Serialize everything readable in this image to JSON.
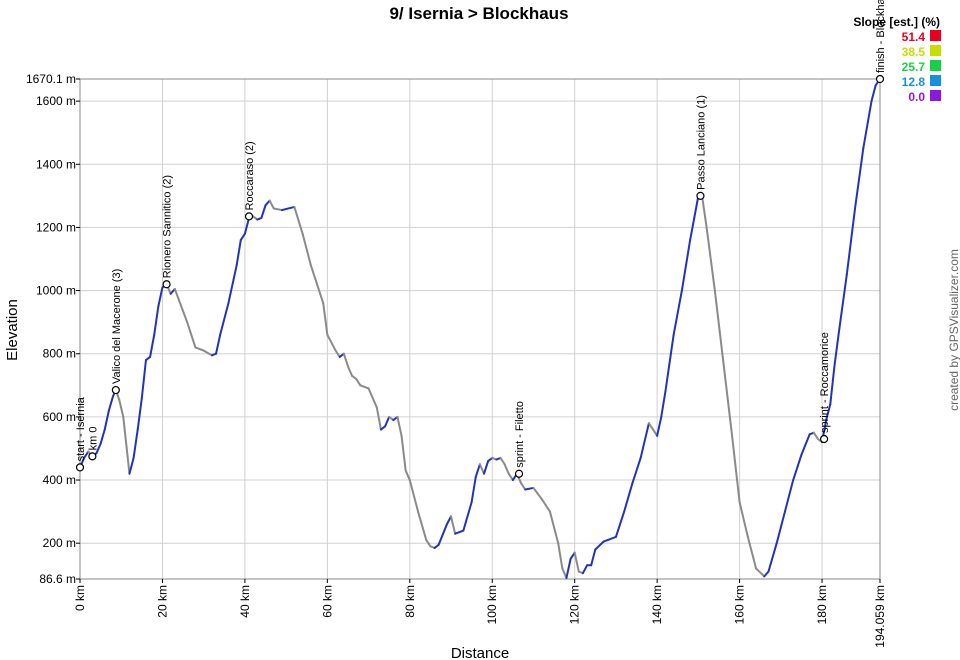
{
  "chart_data": {
    "type": "line",
    "title": "9/ Isernia > Blockhaus",
    "xlabel": "Distance",
    "ylabel": "Elevation",
    "credit": "created by GPSVisualizer.com",
    "xlim": [
      0,
      194.059
    ],
    "ylim": [
      86.6,
      1670.1
    ],
    "grid": true,
    "x_ticks": [
      {
        "value": 0,
        "label": "0 km"
      },
      {
        "value": 20,
        "label": "20 km"
      },
      {
        "value": 40,
        "label": "40 km"
      },
      {
        "value": 60,
        "label": "60 km"
      },
      {
        "value": 80,
        "label": "80 km"
      },
      {
        "value": 100,
        "label": "100 km"
      },
      {
        "value": 120,
        "label": "120 km"
      },
      {
        "value": 140,
        "label": "140 km"
      },
      {
        "value": 160,
        "label": "160 km"
      },
      {
        "value": 180,
        "label": "180 km"
      },
      {
        "value": 194.059,
        "label": "194.059 km"
      }
    ],
    "y_ticks": [
      {
        "value": 86.6,
        "label": "86.6 m"
      },
      {
        "value": 200,
        "label": "200 m"
      },
      {
        "value": 400,
        "label": "400 m"
      },
      {
        "value": 600,
        "label": "600 m"
      },
      {
        "value": 800,
        "label": "800 m"
      },
      {
        "value": 1000,
        "label": "1000 m"
      },
      {
        "value": 1200,
        "label": "1200 m"
      },
      {
        "value": 1400,
        "label": "1400 m"
      },
      {
        "value": 1600,
        "label": "1600 m"
      },
      {
        "value": 1670.1,
        "label": "1670.1 m"
      }
    ],
    "legend": {
      "title": "Slope [est.] (%)",
      "position": "top-right",
      "entries": [
        {
          "label": "51.4",
          "color": "#e8001c"
        },
        {
          "label": "38.5",
          "color": "#c8dc00"
        },
        {
          "label": "25.7",
          "color": "#18d048"
        },
        {
          "label": "12.8",
          "color": "#1890e0"
        },
        {
          "label": "0.0",
          "color": "#8a18e0"
        }
      ]
    },
    "colors": {
      "climb": "#2233bb",
      "descent": "#8a8a8a"
    },
    "profile": [
      [
        0,
        440
      ],
      [
        1,
        470
      ],
      [
        2,
        490
      ],
      [
        3,
        475
      ],
      [
        4,
        485
      ],
      [
        5,
        515
      ],
      [
        6,
        560
      ],
      [
        7,
        620
      ],
      [
        8,
        665
      ],
      [
        8.7,
        685
      ],
      [
        9.5,
        655
      ],
      [
        10.5,
        600
      ],
      [
        11.5,
        480
      ],
      [
        12,
        420
      ],
      [
        13,
        470
      ],
      [
        14,
        560
      ],
      [
        15,
        660
      ],
      [
        16,
        780
      ],
      [
        17,
        790
      ],
      [
        18,
        860
      ],
      [
        19,
        950
      ],
      [
        20,
        1010
      ],
      [
        21,
        1020
      ],
      [
        22,
        990
      ],
      [
        23,
        1005
      ],
      [
        24,
        970
      ],
      [
        26,
        900
      ],
      [
        28,
        820
      ],
      [
        30,
        810
      ],
      [
        32,
        795
      ],
      [
        33,
        800
      ],
      [
        34,
        860
      ],
      [
        36,
        960
      ],
      [
        38,
        1080
      ],
      [
        39,
        1160
      ],
      [
        40,
        1180
      ],
      [
        41,
        1230
      ],
      [
        42,
        1235
      ],
      [
        43,
        1225
      ],
      [
        44,
        1230
      ],
      [
        45,
        1270
      ],
      [
        46,
        1285
      ],
      [
        47,
        1260
      ],
      [
        49,
        1255
      ],
      [
        52,
        1265
      ],
      [
        54,
        1180
      ],
      [
        56,
        1080
      ],
      [
        58,
        1000
      ],
      [
        59,
        960
      ],
      [
        60,
        860
      ],
      [
        62,
        810
      ],
      [
        63,
        790
      ],
      [
        64,
        800
      ],
      [
        65,
        760
      ],
      [
        66,
        730
      ],
      [
        67,
        720
      ],
      [
        68,
        700
      ],
      [
        70,
        690
      ],
      [
        72,
        630
      ],
      [
        73,
        560
      ],
      [
        74,
        570
      ],
      [
        75,
        600
      ],
      [
        76,
        590
      ],
      [
        77,
        600
      ],
      [
        78,
        540
      ],
      [
        79,
        430
      ],
      [
        80,
        400
      ],
      [
        82,
        300
      ],
      [
        84,
        210
      ],
      [
        85,
        190
      ],
      [
        86,
        185
      ],
      [
        87,
        195
      ],
      [
        89,
        260
      ],
      [
        90,
        285
      ],
      [
        91,
        230
      ],
      [
        92,
        235
      ],
      [
        93,
        240
      ],
      [
        95,
        330
      ],
      [
        96,
        410
      ],
      [
        97,
        450
      ],
      [
        98,
        420
      ],
      [
        99,
        460
      ],
      [
        100,
        470
      ],
      [
        101,
        465
      ],
      [
        102,
        470
      ],
      [
        103,
        450
      ],
      [
        104,
        420
      ],
      [
        105,
        400
      ],
      [
        106,
        420
      ],
      [
        107,
        390
      ],
      [
        108,
        370
      ],
      [
        110,
        375
      ],
      [
        112,
        340
      ],
      [
        114,
        300
      ],
      [
        116,
        200
      ],
      [
        117,
        120
      ],
      [
        118,
        90
      ],
      [
        119,
        150
      ],
      [
        120,
        170
      ],
      [
        121,
        110
      ],
      [
        122,
        105
      ],
      [
        123,
        130
      ],
      [
        124,
        130
      ],
      [
        125,
        180
      ],
      [
        127,
        205
      ],
      [
        128,
        210
      ],
      [
        130,
        220
      ],
      [
        132,
        300
      ],
      [
        134,
        390
      ],
      [
        136,
        470
      ],
      [
        138,
        580
      ],
      [
        140,
        540
      ],
      [
        141,
        600
      ],
      [
        142,
        680
      ],
      [
        144,
        860
      ],
      [
        146,
        1000
      ],
      [
        148,
        1160
      ],
      [
        149,
        1230
      ],
      [
        150,
        1300
      ],
      [
        151,
        1290
      ],
      [
        152,
        1200
      ],
      [
        154,
        1000
      ],
      [
        156,
        780
      ],
      [
        158,
        560
      ],
      [
        160,
        330
      ],
      [
        162,
        220
      ],
      [
        164,
        120
      ],
      [
        166,
        95
      ],
      [
        167,
        110
      ],
      [
        169,
        200
      ],
      [
        171,
        300
      ],
      [
        173,
        400
      ],
      [
        175,
        480
      ],
      [
        177,
        545
      ],
      [
        178,
        550
      ],
      [
        179,
        530
      ],
      [
        180,
        520
      ],
      [
        181,
        590
      ],
      [
        182,
        640
      ],
      [
        183,
        760
      ],
      [
        184,
        860
      ],
      [
        186,
        1050
      ],
      [
        188,
        1260
      ],
      [
        190,
        1450
      ],
      [
        192,
        1600
      ],
      [
        193,
        1650
      ],
      [
        194.059,
        1670
      ]
    ],
    "waypoints": [
      {
        "label": "start - Isernia",
        "x": 0,
        "y": 440
      },
      {
        "label": "km 0",
        "x": 3,
        "y": 475
      },
      {
        "label": "Valico del Macerone (3)",
        "x": 8.7,
        "y": 685
      },
      {
        "label": "Rionero Sannitico (2)",
        "x": 21,
        "y": 1020
      },
      {
        "label": "Roccaraso (2)",
        "x": 41,
        "y": 1235
      },
      {
        "label": "sprint - Filetto",
        "x": 106.5,
        "y": 420
      },
      {
        "label": "Passo Lanciano (1)",
        "x": 150.5,
        "y": 1300
      },
      {
        "label": "sprint - Roccamorice",
        "x": 180.5,
        "y": 530
      },
      {
        "label": "finish - Blockhaus",
        "x": 194.059,
        "y": 1670
      }
    ]
  }
}
